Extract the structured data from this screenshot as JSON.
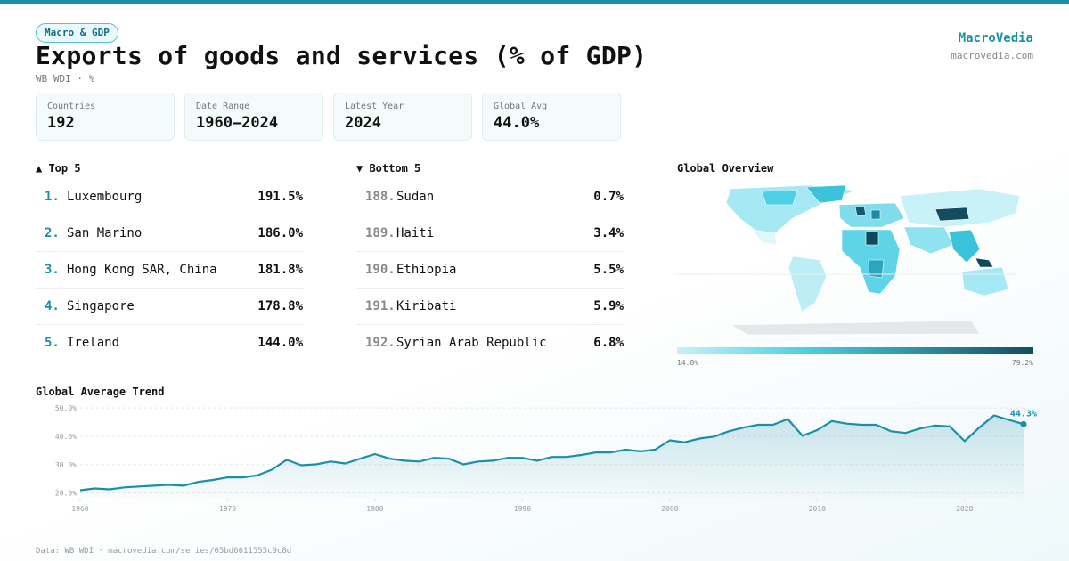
{
  "header": {
    "tag": "Macro & GDP",
    "title": "Exports of goods and services (% of GDP)",
    "subtitle": "WB WDI · %",
    "brand": "MacroVedia",
    "brand_url": "macrovedia.com"
  },
  "stats": [
    {
      "label": "Countries",
      "value": "192"
    },
    {
      "label": "Date Range",
      "value": "1960–2024"
    },
    {
      "label": "Latest Year",
      "value": "2024"
    },
    {
      "label": "Global Avg",
      "value": "44.0%"
    }
  ],
  "top": {
    "title": "▲ Top 5",
    "rows": [
      {
        "rank": "1.",
        "name": "Luxembourg",
        "value": "191.5%"
      },
      {
        "rank": "2.",
        "name": "San Marino",
        "value": "186.0%"
      },
      {
        "rank": "3.",
        "name": "Hong Kong SAR, China",
        "value": "181.8%"
      },
      {
        "rank": "4.",
        "name": "Singapore",
        "value": "178.8%"
      },
      {
        "rank": "5.",
        "name": "Ireland",
        "value": "144.0%"
      }
    ]
  },
  "bottom": {
    "title": "▼ Bottom 5",
    "rows": [
      {
        "rank": "188.",
        "name": "Sudan",
        "value": "0.7%"
      },
      {
        "rank": "189.",
        "name": "Haiti",
        "value": "3.4%"
      },
      {
        "rank": "190.",
        "name": "Ethiopia",
        "value": "5.5%"
      },
      {
        "rank": "191.",
        "name": "Kiribati",
        "value": "5.9%"
      },
      {
        "rank": "192.",
        "name": "Syrian Arab Republic",
        "value": "6.8%"
      }
    ]
  },
  "map": {
    "title": "Global Overview",
    "legend_min": "14.8%",
    "legend_max": "79.2%"
  },
  "chart_data": {
    "type": "line",
    "title": "Global Average Trend",
    "x": [
      1960,
      1961,
      1962,
      1963,
      1964,
      1965,
      1966,
      1967,
      1968,
      1969,
      1970,
      1971,
      1972,
      1973,
      1974,
      1975,
      1976,
      1977,
      1978,
      1979,
      1980,
      1981,
      1982,
      1983,
      1984,
      1985,
      1986,
      1987,
      1988,
      1989,
      1990,
      1991,
      1992,
      1993,
      1994,
      1995,
      1996,
      1997,
      1998,
      1999,
      2000,
      2001,
      2002,
      2003,
      2004,
      2005,
      2006,
      2007,
      2008,
      2009,
      2010,
      2011,
      2012,
      2013,
      2014,
      2015,
      2016,
      2017,
      2018,
      2019,
      2020,
      2021,
      2022,
      2023,
      2024
    ],
    "series": [
      {
        "name": "Global Average",
        "color": "#1a8fa8",
        "values": [
          21.0,
          21.6,
          21.3,
          22.0,
          22.3,
          22.6,
          22.9,
          22.6,
          23.9,
          24.6,
          25.5,
          25.5,
          26.2,
          28.2,
          31.7,
          29.8,
          30.1,
          31.1,
          30.4,
          32.1,
          33.7,
          32.1,
          31.4,
          31.1,
          32.4,
          32.1,
          30.1,
          31.1,
          31.4,
          32.4,
          32.4,
          31.4,
          32.7,
          32.7,
          33.4,
          34.3,
          34.3,
          35.3,
          34.7,
          35.3,
          38.6,
          37.9,
          39.2,
          39.9,
          41.8,
          43.1,
          44.1,
          44.1,
          46.1,
          40.2,
          42.2,
          45.4,
          44.5,
          44.1,
          44.1,
          41.8,
          41.2,
          42.8,
          43.8,
          43.5,
          38.3,
          43.1,
          47.4,
          45.8,
          44.3
        ],
        "value_labels": [
          null,
          null,
          null,
          null,
          null,
          null,
          null,
          null,
          null,
          null,
          null,
          null,
          null,
          null,
          null,
          null,
          null,
          null,
          null,
          null,
          null,
          null,
          null,
          null,
          null,
          null,
          null,
          null,
          null,
          null,
          null,
          null,
          null,
          null,
          null,
          null,
          null,
          null,
          null,
          null,
          null,
          null,
          null,
          null,
          null,
          null,
          null,
          null,
          null,
          null,
          null,
          null,
          null,
          null,
          null,
          null,
          null,
          null,
          null,
          null,
          null,
          null,
          null,
          null,
          "44.3%"
        ]
      }
    ],
    "xlim": [
      1960,
      2024
    ],
    "xticks": [
      1960,
      1970,
      1980,
      1990,
      2000,
      2010,
      2020
    ],
    "ylim": [
      18,
      51
    ],
    "yticks": [
      {
        "value": 20,
        "label": "20.0%"
      },
      {
        "value": 30,
        "label": "30.0%"
      },
      {
        "value": 40,
        "label": "40.0%"
      },
      {
        "value": 50,
        "label": "50.0%"
      }
    ],
    "grid": true
  },
  "footer": "Data: WB WDI · macrovedia.com/series/05bd6611555c9c8d"
}
